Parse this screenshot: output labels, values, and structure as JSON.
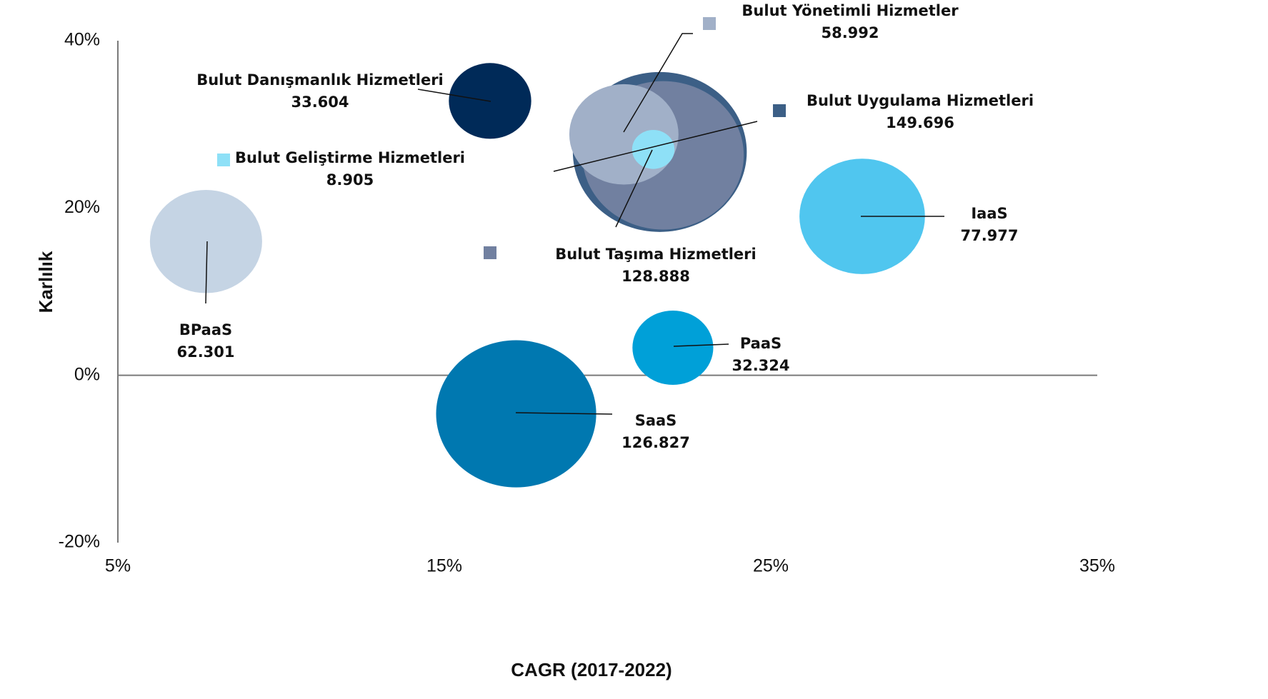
{
  "chart_data": {
    "type": "bubble",
    "xlabel": "CAGR (2017-2022)",
    "ylabel": "Karlılık",
    "xlim": [
      5,
      35
    ],
    "ylim": [
      -20,
      40
    ],
    "xticks": [
      {
        "value": 5,
        "label": "5%"
      },
      {
        "value": 15,
        "label": "15%"
      },
      {
        "value": 25,
        "label": "25%"
      },
      {
        "value": 35,
        "label": "35%"
      }
    ],
    "yticks": [
      {
        "value": -20,
        "label": "-20%"
      },
      {
        "value": 0,
        "label": "0%"
      },
      {
        "value": 20,
        "label": "20%"
      },
      {
        "value": 40,
        "label": "40%"
      }
    ],
    "categories": [
      "Bulut Uygulama Hizmetleri",
      "Bulut Taşıma Hizmetleri",
      "Bulut Yönetimli Hizmetler",
      "Bulut Geliştirme Hizmetleri",
      "SaaS",
      "PaaS",
      "IaaS",
      "BPaaS",
      "Bulut Danışmanlık Hizmetleri"
    ],
    "x": [
      21.6,
      21.7,
      20.5,
      21.4,
      17.2,
      22.0,
      27.8,
      7.7,
      16.4
    ],
    "values": [
      26.7,
      26.3,
      28.8,
      27.0,
      -4.6,
      3.3,
      19.0,
      16.0,
      32.8
    ],
    "sizes": [
      149.696,
      128.888,
      58.992,
      8.905,
      126.827,
      32.324,
      77.977,
      62.301,
      33.604
    ],
    "colors": [
      "#3c5f86",
      "#7180a0",
      "#a1b0c8",
      "#8ee0f7",
      "#0078b0",
      "#00a0d8",
      "#50c6ef",
      "#c5d4e4",
      "#002a58"
    ]
  }
}
